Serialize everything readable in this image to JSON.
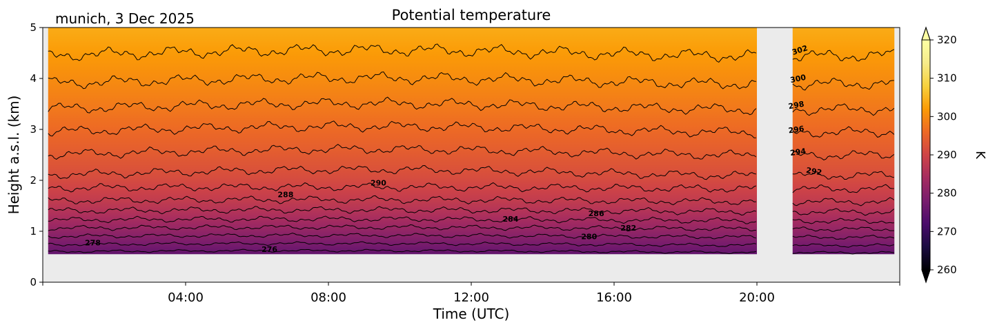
{
  "chart_data": {
    "type": "heatmap",
    "title": "Potential temperature",
    "subtitle": "munich, 3 Dec 2025",
    "xlabel": "Time (UTC)",
    "ylabel": "Height a.s.l. (km)",
    "xlim_hours": [
      0,
      24
    ],
    "ylim_km": [
      0,
      5
    ],
    "x_ticks": [
      {
        "hour": 4,
        "label": "04:00"
      },
      {
        "hour": 8,
        "label": "08:00"
      },
      {
        "hour": 12,
        "label": "12:00"
      },
      {
        "hour": 16,
        "label": "16:00"
      },
      {
        "hour": 20,
        "label": "20:00"
      }
    ],
    "x_minor_ticks_hours": [
      0,
      24
    ],
    "y_ticks": [
      {
        "value": 0,
        "label": "0"
      },
      {
        "value": 1,
        "label": "1"
      },
      {
        "value": 2,
        "label": "2"
      },
      {
        "value": 3,
        "label": "3"
      },
      {
        "value": 4,
        "label": "4"
      },
      {
        "value": 5,
        "label": "5"
      }
    ],
    "data_bottom_km": 0.55,
    "data_segments_hours": [
      [
        0.15,
        20.0
      ],
      [
        21.0,
        23.85
      ]
    ],
    "missing_data_color": "#ebebeb",
    "colormap": "inferno",
    "color_range": [
      260,
      320
    ],
    "colorbar": {
      "label": "K",
      "ticks": [
        {
          "value": 260,
          "label": "260"
        },
        {
          "value": 270,
          "label": "270"
        },
        {
          "value": 280,
          "label": "280"
        },
        {
          "value": 290,
          "label": "290"
        },
        {
          "value": 300,
          "label": "300"
        },
        {
          "value": 310,
          "label": "310"
        },
        {
          "value": 320,
          "label": "320"
        }
      ],
      "extend": "both"
    },
    "contour_levels": [
      {
        "level": 276,
        "height_km": 0.6
      },
      {
        "level": 278,
        "height_km": 0.74
      },
      {
        "level": 280,
        "height_km": 0.9
      },
      {
        "level": 282,
        "height_km": 1.06
      },
      {
        "level": 284,
        "height_km": 1.22
      },
      {
        "level": 286,
        "height_km": 1.4
      },
      {
        "level": 288,
        "height_km": 1.6
      },
      {
        "level": 290,
        "height_km": 1.85
      },
      {
        "level": 292,
        "height_km": 2.15
      },
      {
        "level": 294,
        "height_km": 2.55
      },
      {
        "level": 296,
        "height_km": 3.0
      },
      {
        "level": 298,
        "height_km": 3.45
      },
      {
        "level": 300,
        "height_km": 3.95
      },
      {
        "level": 302,
        "height_km": 4.5
      }
    ],
    "contour_labels": [
      {
        "text": "276",
        "hour": 6.35,
        "height_km": 0.65,
        "angle": 0
      },
      {
        "text": "278",
        "hour": 1.4,
        "height_km": 0.78,
        "angle": 0
      },
      {
        "text": "280",
        "hour": 15.3,
        "height_km": 0.9,
        "angle": 0
      },
      {
        "text": "282",
        "hour": 16.4,
        "height_km": 1.07,
        "angle": 0
      },
      {
        "text": "284",
        "hour": 13.1,
        "height_km": 1.24,
        "angle": 0
      },
      {
        "text": "286",
        "hour": 15.5,
        "height_km": 1.35,
        "angle": 0
      },
      {
        "text": "288",
        "hour": 6.8,
        "height_km": 1.72,
        "angle": 0
      },
      {
        "text": "290",
        "hour": 9.4,
        "height_km": 1.95,
        "angle": 0
      },
      {
        "text": "292",
        "hour": 21.6,
        "height_km": 2.18,
        "angle": 10
      },
      {
        "text": "294",
        "hour": 21.15,
        "height_km": 2.56,
        "angle": -8
      },
      {
        "text": "296",
        "hour": 21.1,
        "height_km": 3.0,
        "angle": -8
      },
      {
        "text": "298",
        "hour": 21.1,
        "height_km": 3.48,
        "angle": -10
      },
      {
        "text": "300",
        "hour": 21.15,
        "height_km": 4.0,
        "angle": -12
      },
      {
        "text": "302",
        "hour": 21.2,
        "height_km": 4.56,
        "angle": -18
      }
    ]
  }
}
